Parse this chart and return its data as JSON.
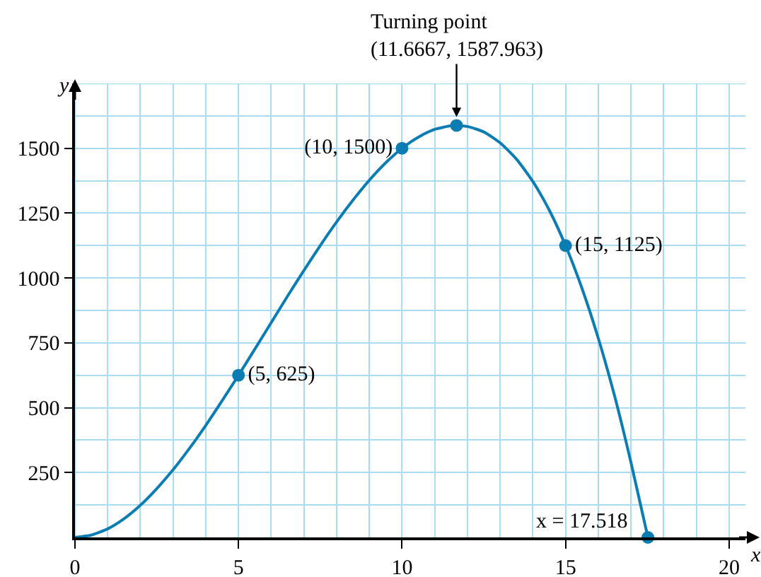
{
  "chart_data": {
    "type": "line",
    "xlabel": "x",
    "ylabel": "y",
    "xlim": [
      0,
      20.5
    ],
    "ylim": [
      0,
      1750
    ],
    "xticks": [
      {
        "value": 0,
        "label": "0"
      },
      {
        "value": 1,
        "label": null
      },
      {
        "value": 2,
        "label": null
      },
      {
        "value": 3,
        "label": null
      },
      {
        "value": 4,
        "label": null
      },
      5,
      {
        "value": 6,
        "label": null
      },
      {
        "value": 7,
        "label": null
      },
      {
        "value": 8,
        "label": null
      },
      {
        "value": 9,
        "label": null
      },
      10,
      {
        "value": 11,
        "label": null
      },
      {
        "value": 12,
        "label": null
      },
      {
        "value": 13,
        "label": null
      },
      {
        "value": 14,
        "label": null
      },
      15,
      {
        "value": 16,
        "label": null
      },
      {
        "value": 17,
        "label": null
      },
      {
        "value": 18,
        "label": null
      },
      {
        "value": 19,
        "label": null
      },
      20
    ],
    "yticks": [
      {
        "value": 125,
        "label": null
      },
      250,
      {
        "value": 375,
        "label": null
      },
      500,
      {
        "value": 625,
        "label": null
      },
      750,
      {
        "value": 875,
        "label": null
      },
      1000,
      {
        "value": 1125,
        "label": null
      },
      1250,
      {
        "value": 1375,
        "label": null
      },
      1500,
      {
        "value": 1625,
        "label": null
      },
      {
        "value": 1750,
        "label": null
      }
    ],
    "grid": true,
    "series": [
      {
        "color": "#0b7db3",
        "marker": "none",
        "line_style": "solid",
        "x": [
          0,
          0.5,
          1,
          1.5,
          2,
          2.5,
          3,
          3.5,
          4,
          4.5,
          5,
          5.5,
          6,
          6.5,
          7,
          7.5,
          8,
          8.5,
          9,
          9.5,
          10,
          10.5,
          11,
          11.5,
          11.6667,
          12,
          12.5,
          13,
          13.5,
          14,
          14.5,
          15,
          15.5,
          16,
          16.5,
          17,
          17.518
        ],
        "values": [
          0,
          9,
          33,
          72,
          124,
          188,
          261,
          343,
          432,
          527,
          625,
          726,
          828,
          930,
          1029,
          1125,
          1216,
          1300,
          1377,
          1444,
          1500,
          1543,
          1573,
          1587,
          1588,
          1584,
          1563,
          1521,
          1458,
          1372,
          1262,
          1125,
          961,
          768,
          545,
          289,
          0
        ]
      },
      {
        "type": "scatter",
        "color": "#0b7db3",
        "marker": "circle",
        "x": [
          5,
          10,
          11.6667,
          15,
          17.518
        ],
        "values": [
          625,
          1500,
          1587.963,
          1125,
          0
        ],
        "value_labels": [
          "(5, 625)",
          "(10, 1500)",
          null,
          "(15, 1125)",
          null
        ]
      }
    ],
    "annotations": [
      {
        "text": "Turning point\n(11.6667, 1587.963)",
        "x": 11.6667,
        "y": 1587.963
      },
      {
        "text": "x = 17.518",
        "x": 17.518,
        "y": 0
      }
    ]
  }
}
